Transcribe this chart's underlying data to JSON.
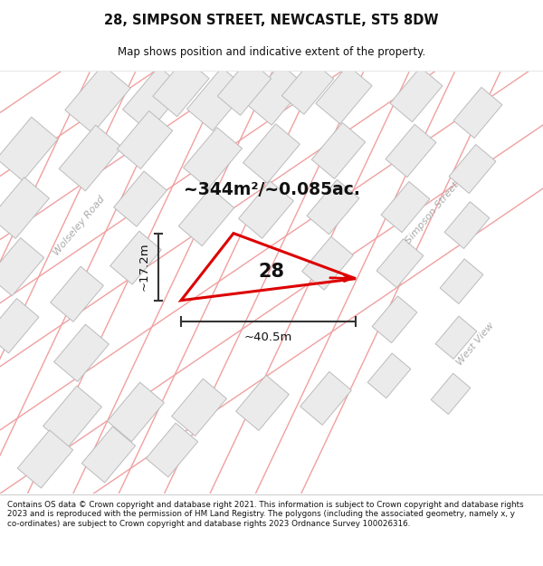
{
  "title": "28, SIMPSON STREET, NEWCASTLE, ST5 8DW",
  "subtitle": "Map shows position and indicative extent of the property.",
  "footer": "Contains OS data © Crown copyright and database right 2021. This information is subject to Crown copyright and database rights 2023 and is reproduced with the permission of HM Land Registry. The polygons (including the associated geometry, namely x, y co-ordinates) are subject to Crown copyright and database rights 2023 Ordnance Survey 100026316.",
  "area_text": "~344m²/~0.085ac.",
  "dim_h": "~17.2m",
  "dim_w": "~40.5m",
  "property_number": "28",
  "map_bg": "#ffffff",
  "building_fill": "#ebebeb",
  "building_edge": "#bbbbbb",
  "street_line_color": "#f0a0a0",
  "poly_color": "#dd0000",
  "title_color": "#111111",
  "footer_color": "#111111",
  "dim_color": "#333333",
  "street_label_color": "#aaaaaa"
}
